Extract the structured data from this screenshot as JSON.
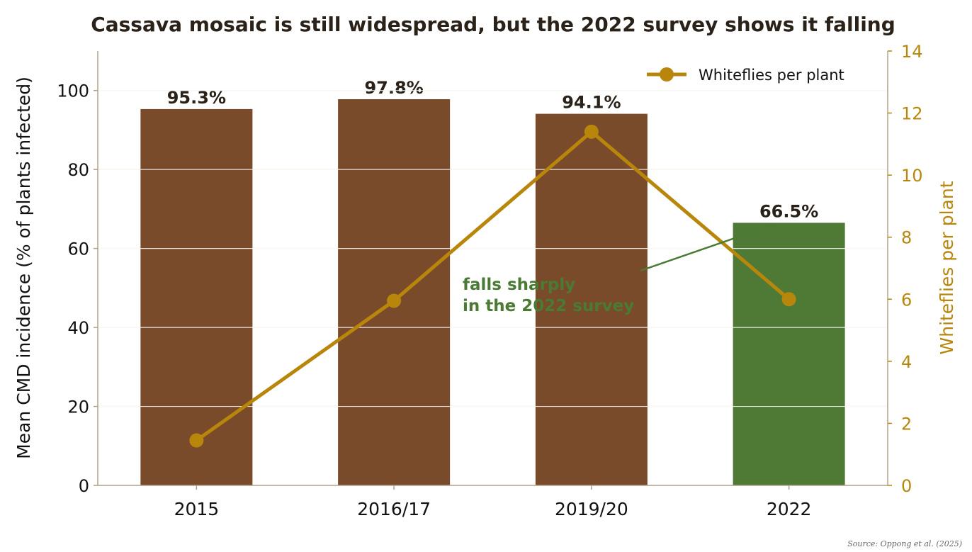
{
  "chart_data": {
    "type": "bar",
    "title": "Cassava mosaic is still widespread, but the 2022 survey shows it falling",
    "categories": [
      "2015",
      "2016/17",
      "2019/20",
      "2022"
    ],
    "ylabel": "Mean CMD incidence (% of plants infected)",
    "y2label": "Whiteflies per plant",
    "ylim": [
      0,
      110
    ],
    "y2lim": [
      0,
      14
    ],
    "yticks": [
      0,
      20,
      40,
      60,
      80,
      100
    ],
    "y2ticks": [
      0,
      2,
      4,
      6,
      8,
      10,
      12,
      14
    ],
    "grid": "horizontal",
    "legend_position": "top-right",
    "series": [
      {
        "type": "bar",
        "axis": "left",
        "values": [
          95.3,
          97.8,
          94.1,
          66.5
        ],
        "data_labels": [
          "95.3%",
          "97.8%",
          "94.1%",
          "66.5%"
        ],
        "colors": [
          "#7a4b2b",
          "#7a4b2b",
          "#7a4b2b",
          "#4f7a35"
        ]
      },
      {
        "type": "line",
        "axis": "right",
        "name": "Whiteflies per plant",
        "values": [
          1.45,
          5.95,
          11.4,
          6.0
        ],
        "color": "#b8860b"
      }
    ],
    "annotation": {
      "lines": [
        "falls sharply",
        "in the 2022 survey"
      ],
      "target_category": "2022",
      "color": "#4a7a33"
    },
    "source": "Source: Oppong et al. (2025)"
  }
}
